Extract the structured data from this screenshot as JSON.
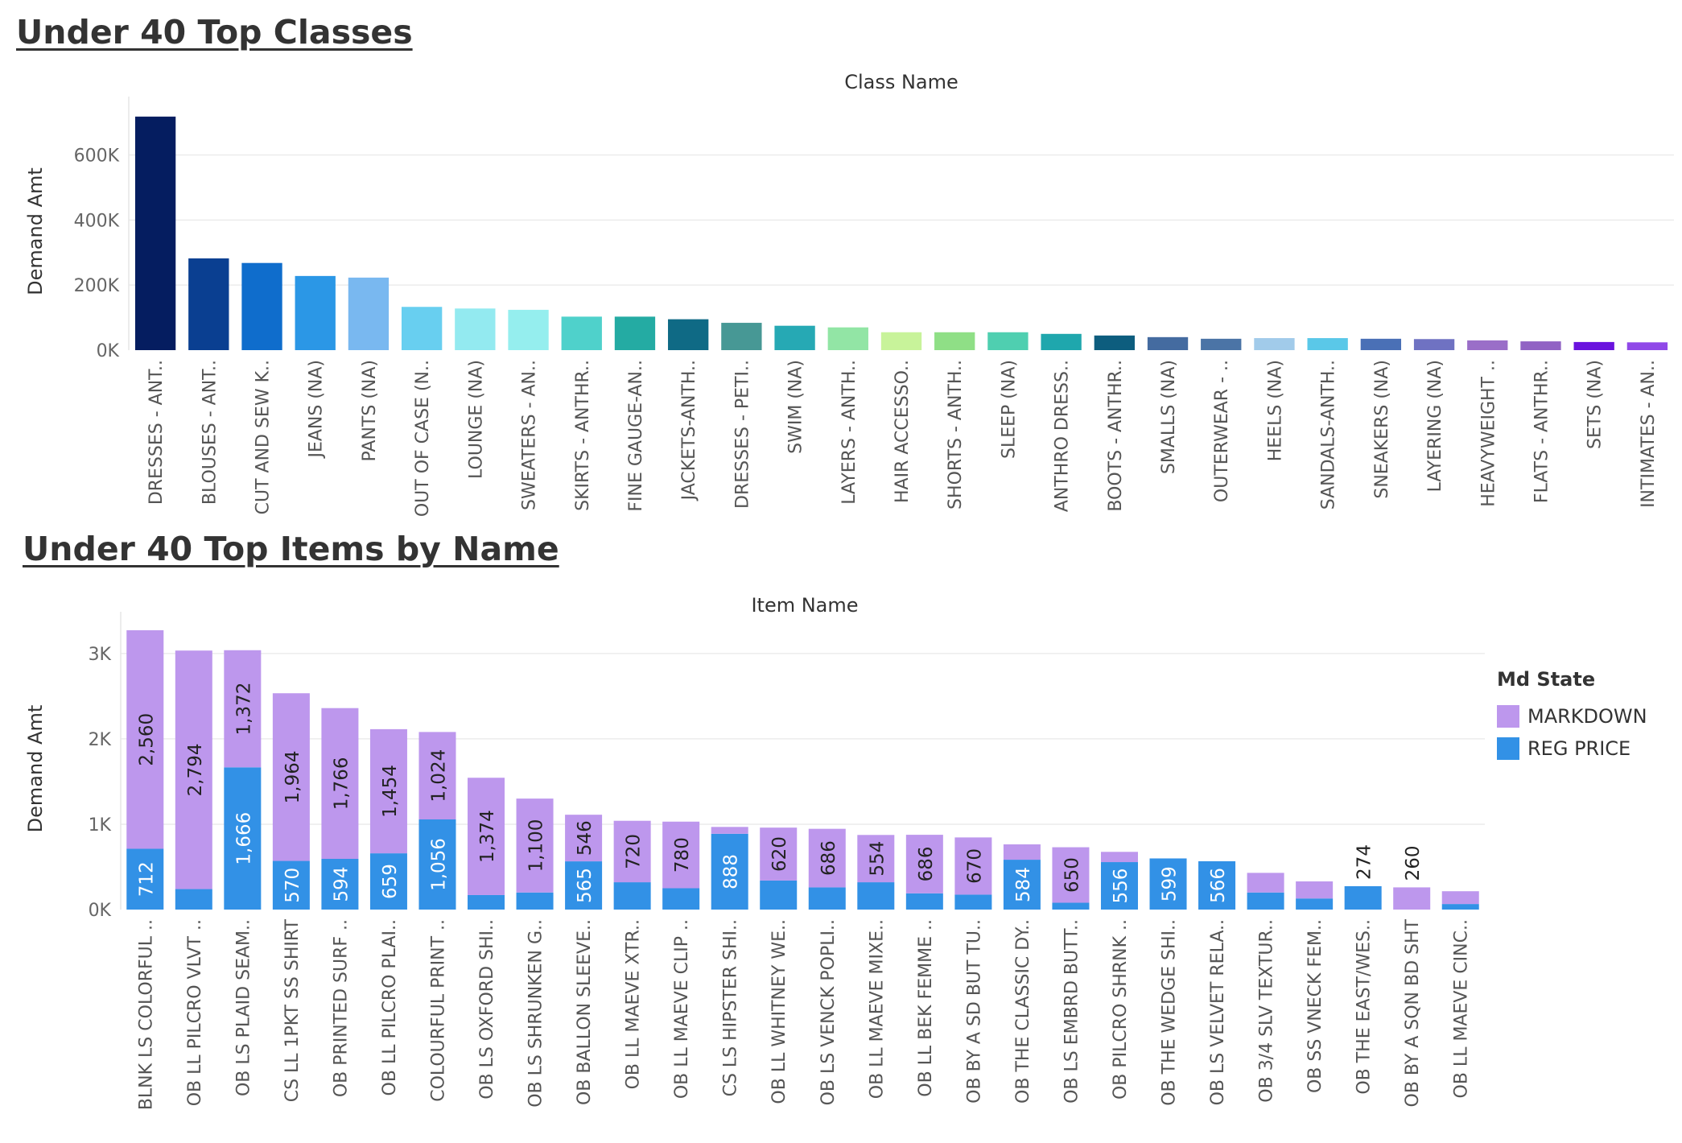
{
  "chart_data": [
    {
      "type": "bar",
      "title": "Under 40 Top Classes",
      "xlabel": "Class Name",
      "ylabel": "Demand Amt",
      "ylim": [
        0,
        730000
      ],
      "yticks": [
        0,
        200000,
        400000,
        600000
      ],
      "ytick_labels": [
        "0K",
        "200K",
        "400K",
        "600K"
      ],
      "grid": true,
      "categories": [
        "DRESSES - ANT..",
        "BLOUSES - ANT..",
        "CUT AND SEW K..",
        "JEANS (NA)",
        "PANTS (NA)",
        "OUT OF CASE (N..",
        "LOUNGE (NA)",
        "SWEATERS - AN..",
        "SKIRTS - ANTHR..",
        "FINE GAUGE-AN..",
        "JACKETS-ANTH..",
        "DRESSES - PETI..",
        "SWIM (NA)",
        "LAYERS - ANTH..",
        "HAIR ACCESSO..",
        "SHORTS - ANTH..",
        "SLEEP (NA)",
        "ANTHRO DRESS..",
        "BOOTS - ANTHR..",
        "SMALLS (NA)",
        "OUTERWEAR - ..",
        "HEELS (NA)",
        "SANDALS-ANTH..",
        "SNEAKERS (NA)",
        "LAYERING (NA)",
        "HEAVYWEIGHT ..",
        "FLATS - ANTHR..",
        "SETS (NA)",
        "INTIMATES - AN.."
      ],
      "values": [
        718000,
        282000,
        268000,
        228000,
        223000,
        133000,
        128000,
        124000,
        103000,
        103000,
        95000,
        84000,
        75000,
        70000,
        55000,
        55000,
        55000,
        50000,
        45000,
        40000,
        35000,
        37000,
        37000,
        35000,
        34000,
        30000,
        27000,
        25000,
        24000
      ],
      "colors": [
        "#051d60",
        "#0a3f91",
        "#0f6dcc",
        "#2b97e6",
        "#79b8f0",
        "#68cff0",
        "#93eaf0",
        "#95eeee",
        "#4fd1cb",
        "#24aba3",
        "#0f6a85",
        "#479895",
        "#26a9b4",
        "#92e5a5",
        "#c8f39a",
        "#8fdf86",
        "#4fcfb0",
        "#1fa7ad",
        "#0d5d7e",
        "#446ba0",
        "#4b74a6",
        "#a1cbea",
        "#5ac8e8",
        "#4a70b6",
        "#6f72c2",
        "#9a6ec8",
        "#9163c4",
        "#6a13de",
        "#9049e8"
      ]
    },
    {
      "type": "bar",
      "stacked": true,
      "title": "Under 40 Top Items by Name",
      "xlabel": "Item Name",
      "ylabel": "Demand Amt",
      "ylim": [
        0,
        3300
      ],
      "yticks": [
        0,
        1000,
        2000,
        3000
      ],
      "ytick_labels": [
        "0K",
        "1K",
        "2K",
        "3K"
      ],
      "grid": true,
      "legend": {
        "title": "Md State",
        "position": "right"
      },
      "categories": [
        "BLNK LS COLORFUL ..",
        "OB LL PILCRO VLVT ..",
        "OB LS PLAID SEAM..",
        "CS LL 1PKT SS SHIRT",
        "OB PRINTED SURF ..",
        "OB LL PILCRO PLAI..",
        "COLOURFUL PRINT ..",
        "OB LS OXFORD SHI..",
        "OB LS SHRUNKEN G..",
        "OB BALLON SLEEVE..",
        "OB LL MAEVE XTR..",
        "OB LL MAEVE CLIP ..",
        "CS LS HIPSTER SHI..",
        "OB LL WHITNEY WE..",
        "OB LS VENCK POPLI..",
        "OB LL MAEVE MIXE..",
        "OB LL BEK FEMME ..",
        "OB BY A SD BUT TU..",
        "OB THE CLASSIC DY..",
        "OB LS EMBRD BUTT..",
        "OB PILCRO SHRNK ..",
        "OB THE WEDGE SHI..",
        "OB LS VELVET RELA..",
        "OB 3/4 SLV TEXTUR..",
        "OB SS VNECK FEM..",
        "OB THE EAST/WES..",
        "OB BY A SQN BD SHT",
        "OB LL MAEVE CINC.."
      ],
      "series": [
        {
          "name": "REG PRICE",
          "color": "#3291e6",
          "values": [
            712,
            240,
            1666,
            570,
            594,
            659,
            1056,
            170,
            200,
            565,
            320,
            250,
            888,
            340,
            260,
            320,
            190,
            175,
            584,
            80,
            556,
            599,
            566,
            200,
            130,
            274,
            0,
            65
          ],
          "labels": [
            "712",
            "",
            "1,666",
            "570",
            "594",
            "659",
            "1,056",
            "",
            "",
            "565",
            "",
            "",
            "888",
            "",
            "",
            "",
            "",
            "",
            "584",
            "",
            "556",
            "599",
            "566",
            "",
            "",
            "",
            "",
            ""
          ]
        },
        {
          "name": "MARKDOWN",
          "color": "#bd97ed",
          "values": [
            2560,
            2794,
            1372,
            1964,
            1766,
            1454,
            1024,
            1374,
            1100,
            546,
            720,
            780,
            80,
            620,
            686,
            554,
            686,
            670,
            180,
            650,
            120,
            0,
            0,
            230,
            200,
            0,
            260,
            150
          ],
          "labels": [
            "2,560",
            "2,794",
            "1,372",
            "1,964",
            "1,766",
            "1,454",
            "1,024",
            "1,374",
            "1,100",
            "546",
            "720",
            "780",
            "",
            "620",
            "686",
            "554",
            "686",
            "670",
            "",
            "650",
            "",
            "",
            "",
            "",
            "",
            "",
            "",
            ""
          ]
        }
      ],
      "top_labels": [
        "",
        "",
        "",
        "",
        "",
        "",
        "",
        "",
        "",
        "",
        "",
        "",
        "",
        "",
        "",
        "",
        "",
        "",
        "",
        "",
        "",
        "",
        "",
        "",
        "",
        "274",
        "260",
        ""
      ]
    }
  ]
}
